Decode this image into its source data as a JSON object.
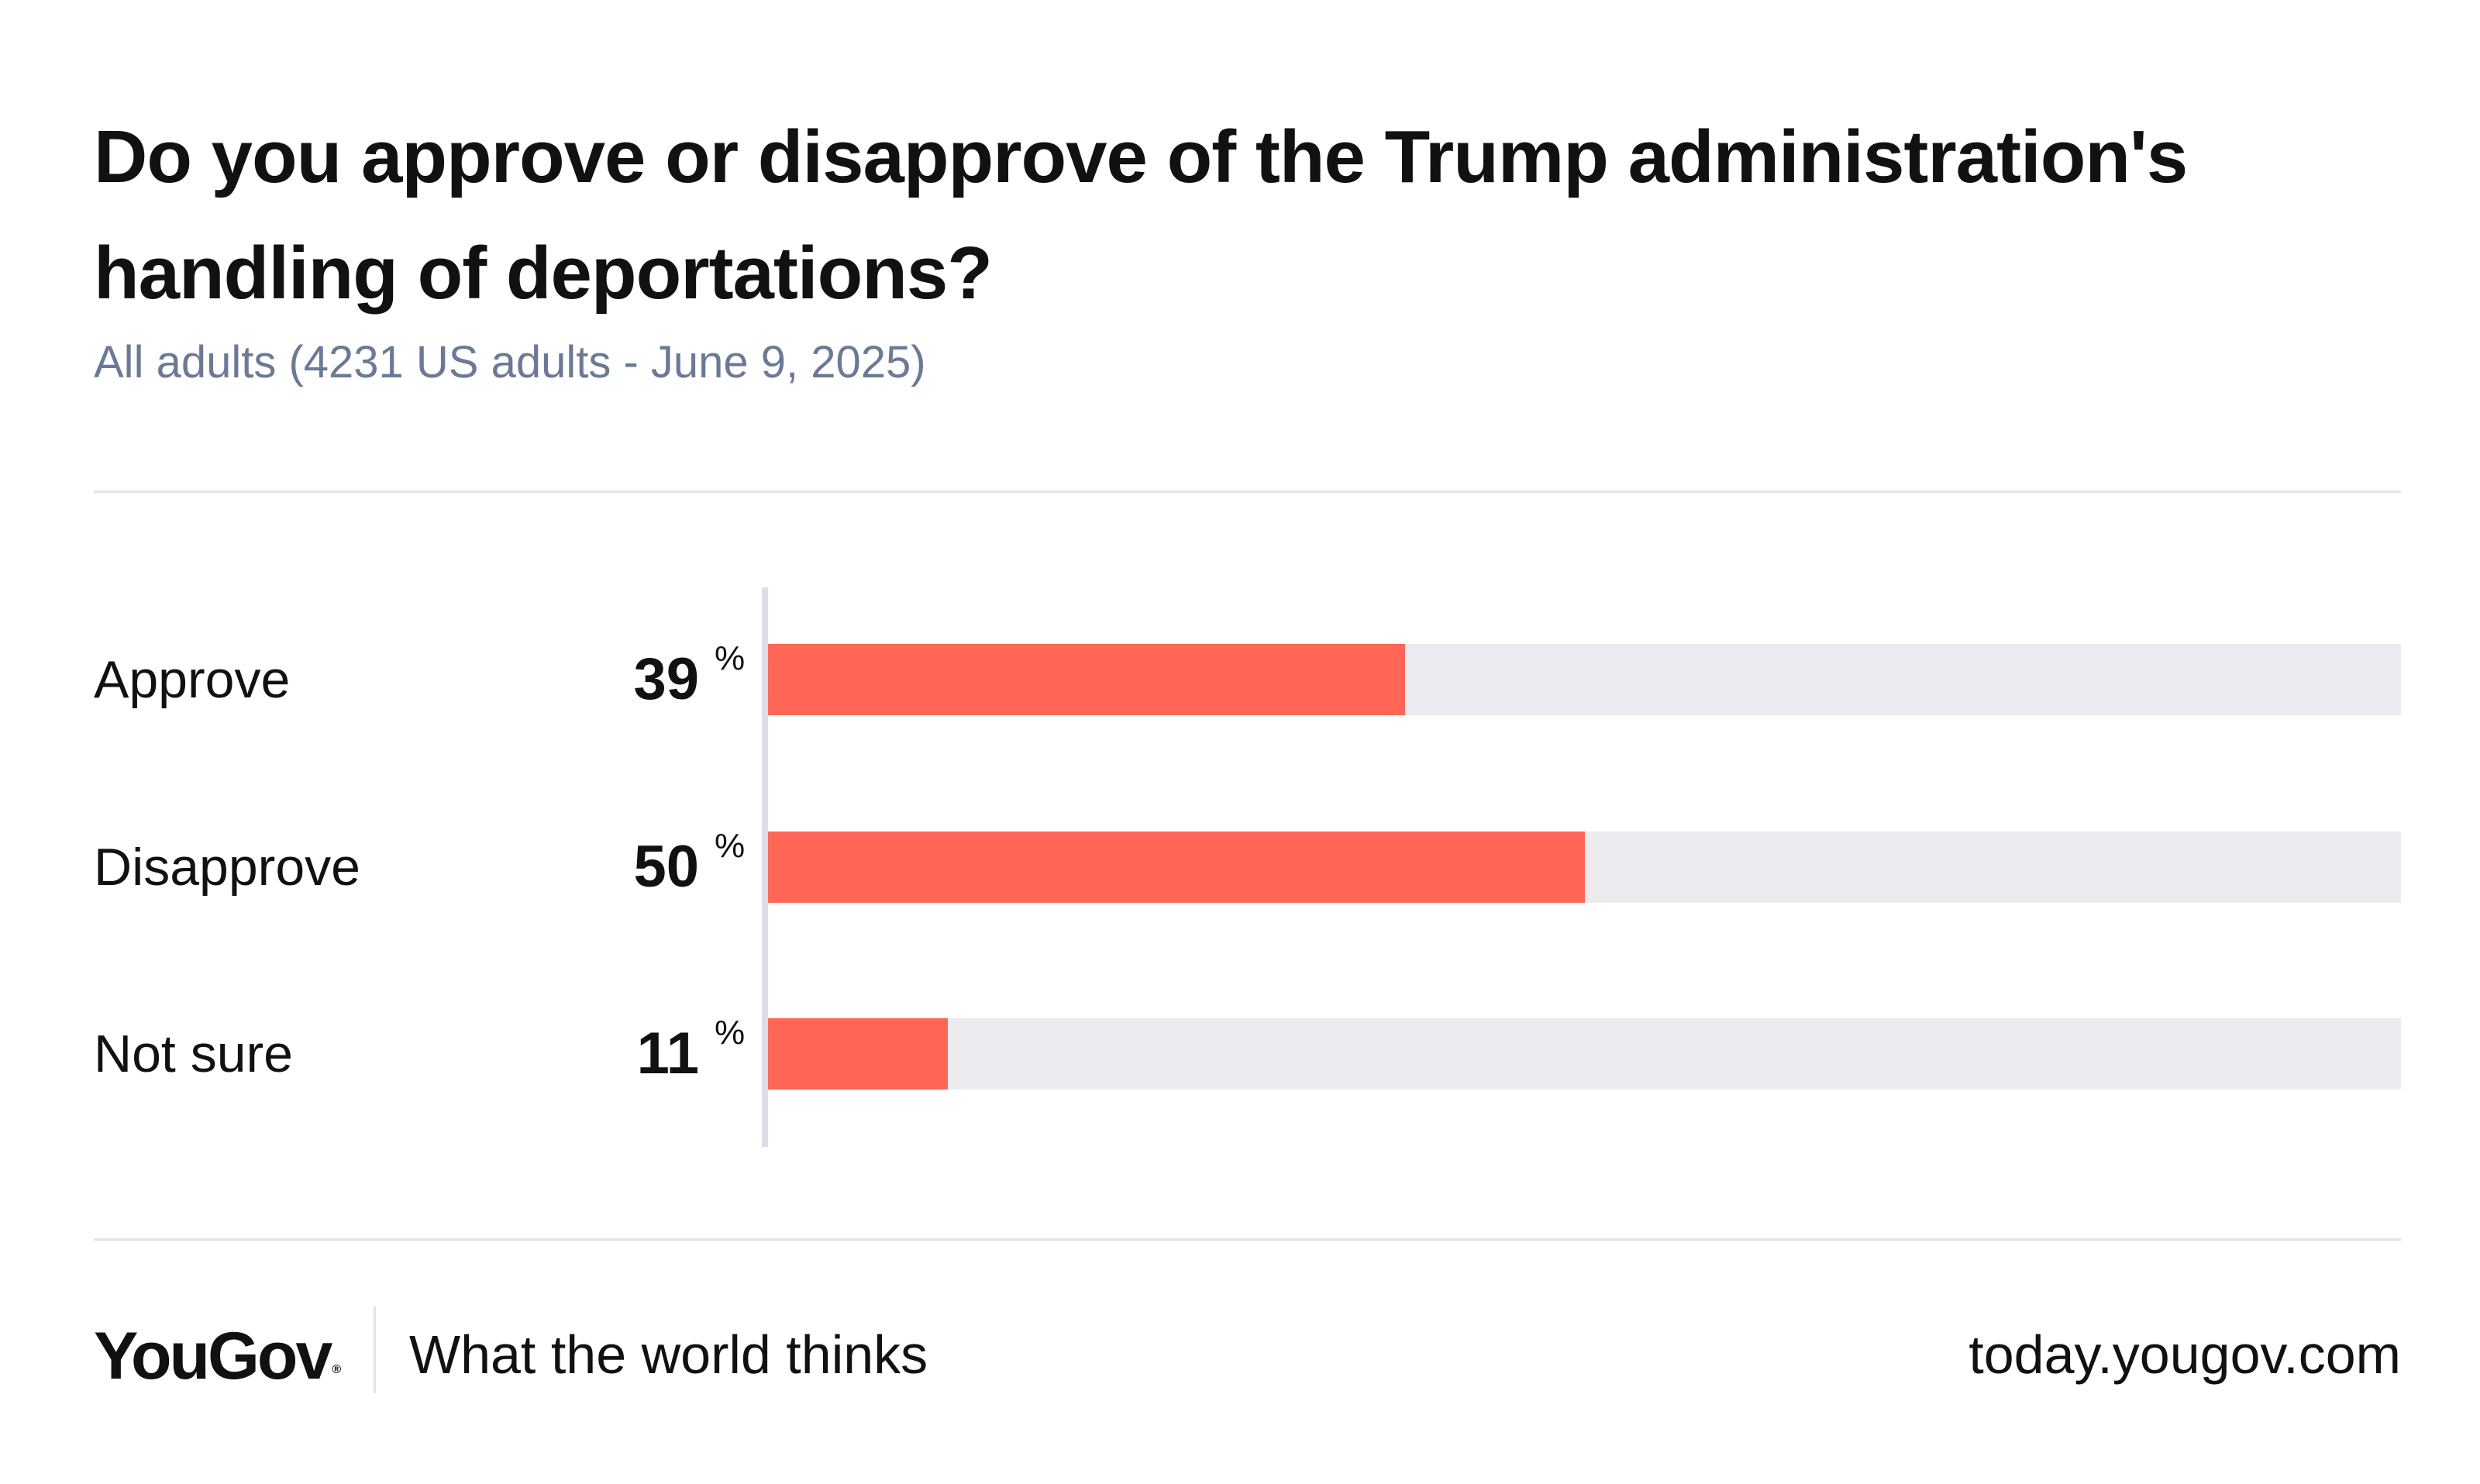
{
  "header": {
    "title": "Do you approve or disapprove of the Trump administration's handling of deportations?",
    "subtitle": "All adults (4231 US adults - June 9, 2025)"
  },
  "chart_data": {
    "type": "bar",
    "orientation": "horizontal",
    "title": "Do you approve or disapprove of the Trump administration's handling of deportations?",
    "subtitle": "All adults (4231 US adults - June 9, 2025)",
    "categories": [
      "Approve",
      "Disapprove",
      "Not sure"
    ],
    "values": [
      39,
      50,
      11
    ],
    "unit": "%",
    "xlim": [
      0,
      100
    ],
    "bar_color": "#ff6656",
    "track_color": "#ececf0",
    "grid": false,
    "legend": "none"
  },
  "footer": {
    "brand": "YouGov",
    "brand_mark": "®",
    "tagline": "What the world thinks",
    "url": "today.yougov.com"
  }
}
